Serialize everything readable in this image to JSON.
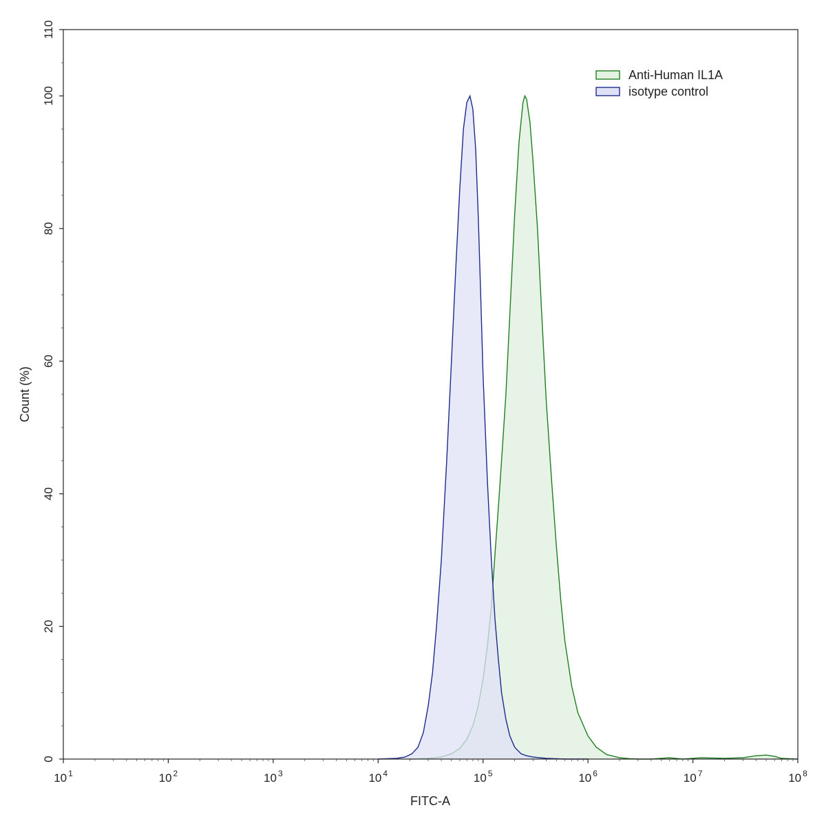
{
  "chart_data": {
    "type": "area",
    "title": "",
    "xlabel": "FITC-A",
    "ylabel": "Count  (%)",
    "xscale": "log",
    "xlim": [
      10,
      100000000
    ],
    "ylim": [
      0,
      110
    ],
    "x_ticks": [
      {
        "value": 10,
        "base": "10",
        "exp": "1"
      },
      {
        "value": 100,
        "base": "10",
        "exp": "2"
      },
      {
        "value": 1000,
        "base": "10",
        "exp": "3"
      },
      {
        "value": 10000,
        "base": "10",
        "exp": "4"
      },
      {
        "value": 100000,
        "base": "10",
        "exp": "5"
      },
      {
        "value": 1000000,
        "base": "10",
        "exp": "6"
      },
      {
        "value": 10000000,
        "base": "10",
        "exp": "7"
      },
      {
        "value": 100000000,
        "base": "10",
        "exp": "8"
      }
    ],
    "y_ticks": [
      "0",
      "20",
      "40",
      "60",
      "80",
      "100",
      "110"
    ],
    "grid": false,
    "legend_position": "top-right",
    "series": [
      {
        "name": "Anti-Human IL1A",
        "stroke": "#1e7f1e",
        "fill": "#e4f2e4",
        "x": [
          20000,
          30000,
          40000,
          50000,
          60000,
          70000,
          80000,
          90000,
          100000,
          110000,
          120000,
          130000,
          140000,
          150000,
          165000,
          180000,
          200000,
          220000,
          240000,
          250000,
          260000,
          280000,
          300000,
          330000,
          360000,
          400000,
          450000,
          500000,
          550000,
          600000,
          700000,
          800000,
          1000000,
          1200000,
          1500000,
          2000000,
          2500000,
          3000000,
          4000000,
          6000000,
          8000000,
          12000000,
          20000000,
          30000000,
          40000000,
          50000000,
          60000000,
          70000000,
          100000000
        ],
        "y": [
          0,
          0.1,
          0.3,
          0.8,
          1.6,
          3,
          5,
          8,
          12,
          17,
          23,
          31,
          38,
          45,
          55,
          67,
          82,
          93,
          99,
          100,
          99.5,
          96,
          90,
          80,
          68,
          54,
          42,
          32,
          24,
          18,
          11,
          7,
          3.5,
          1.8,
          0.7,
          0.2,
          0.05,
          0,
          0,
          0.2,
          0,
          0.2,
          0.1,
          0.2,
          0.5,
          0.6,
          0.4,
          0.1,
          0
        ]
      },
      {
        "name": "isotype control",
        "stroke": "#1c2a8c",
        "fill": "#dfe2f6",
        "x": [
          10000,
          15000,
          18000,
          21000,
          24000,
          27000,
          30000,
          33000,
          36000,
          40000,
          45000,
          50000,
          55000,
          60000,
          65000,
          70000,
          75000,
          80000,
          85000,
          90000,
          95000,
          100000,
          110000,
          120000,
          130000,
          140000,
          150000,
          165000,
          180000,
          200000,
          230000,
          260000,
          300000,
          400000,
          600000,
          1000000
        ],
        "y": [
          0,
          0.1,
          0.3,
          0.8,
          1.8,
          4,
          8,
          13,
          20,
          30,
          45,
          60,
          74,
          86,
          95,
          99,
          100,
          98,
          92,
          82,
          70,
          58,
          42,
          30,
          21,
          15,
          10,
          6,
          3.5,
          1.8,
          0.8,
          0.5,
          0.3,
          0.1,
          0,
          0
        ]
      }
    ]
  }
}
